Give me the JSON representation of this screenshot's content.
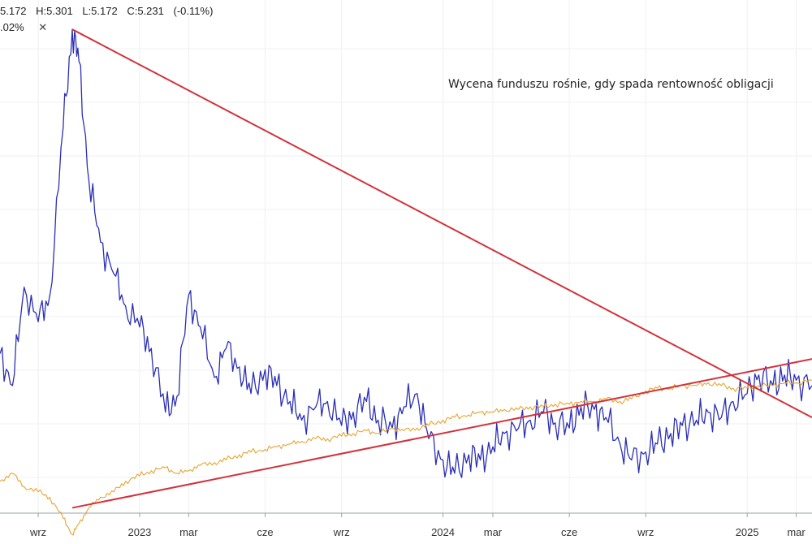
{
  "legend": {
    "open": "5.172",
    "high": "H:5.301",
    "low": "L:5.172",
    "close": "C:5.231",
    "change": "(-0.11%)",
    "row2_value": ".02%",
    "close_icon": "✕"
  },
  "annotation": "Wycena funduszu rośnie, gdy spada rentowność obligacji",
  "colors": {
    "series_blue": "#2b2fb5",
    "series_orange": "#e8a430",
    "trendline": "#d2323c",
    "grid": "#eef0f3"
  },
  "chart_data": {
    "type": "line",
    "x_tick_labels": [
      "wrz",
      "2023",
      "mar",
      "cze",
      "wrz",
      "2024",
      "mar",
      "cze",
      "wrz",
      "2025",
      "mar"
    ],
    "x_tick_dates": [
      "2022-09-01",
      "2023-01-01",
      "2023-03-01",
      "2023-06-01",
      "2023-09-01",
      "2024-01-01",
      "2024-03-01",
      "2024-06-01",
      "2024-09-01",
      "2025-01-01",
      "2025-03-01"
    ],
    "x_range": [
      "2022-07-17",
      "2025-03-20"
    ],
    "y_range": [
      4.6,
      6.5
    ],
    "grid": true,
    "series": [
      {
        "color": "blue",
        "x": [
          "2022-07-17",
          "2022-08-01",
          "2022-08-15",
          "2022-09-01",
          "2022-09-15",
          "2022-10-01",
          "2022-10-12",
          "2022-10-20",
          "2022-11-01",
          "2022-11-15",
          "2022-12-01",
          "2022-12-15",
          "2023-01-01",
          "2023-01-15",
          "2023-02-01",
          "2023-02-15",
          "2023-03-01",
          "2023-03-15",
          "2023-04-01",
          "2023-04-15",
          "2023-05-01",
          "2023-05-15",
          "2023-06-01",
          "2023-06-15",
          "2023-07-01",
          "2023-07-15",
          "2023-08-01",
          "2023-08-15",
          "2023-09-01",
          "2023-09-15",
          "2023-10-01",
          "2023-10-15",
          "2023-11-01",
          "2023-11-15",
          "2023-12-01",
          "2023-12-15",
          "2024-01-01",
          "2024-01-15",
          "2024-02-01",
          "2024-02-15",
          "2024-03-01",
          "2024-03-15",
          "2024-04-01",
          "2024-04-15",
          "2024-05-01",
          "2024-05-15",
          "2024-06-01",
          "2024-06-15",
          "2024-07-01",
          "2024-07-15",
          "2024-08-01",
          "2024-08-15",
          "2024-09-01",
          "2024-09-15",
          "2024-10-01",
          "2024-10-15",
          "2024-11-01",
          "2024-11-15",
          "2024-12-01",
          "2024-12-15",
          "2025-01-01",
          "2025-01-15",
          "2025-02-01",
          "2025-02-15",
          "2025-03-01",
          "2025-03-20"
        ],
        "values": [
          5.2,
          5.08,
          5.45,
          5.32,
          5.42,
          6.05,
          6.42,
          6.3,
          5.85,
          5.62,
          5.5,
          5.38,
          5.3,
          5.22,
          4.98,
          5.04,
          5.42,
          5.3,
          5.11,
          5.22,
          5.15,
          5.05,
          5.14,
          5.08,
          5.02,
          4.95,
          5.0,
          5.02,
          4.93,
          4.98,
          5.02,
          4.95,
          4.92,
          5.0,
          5.05,
          4.88,
          4.8,
          4.75,
          4.82,
          4.8,
          4.85,
          4.9,
          4.92,
          4.95,
          4.98,
          4.94,
          4.92,
          5.0,
          4.99,
          4.96,
          4.86,
          4.8,
          4.83,
          4.86,
          4.9,
          4.93,
          4.95,
          4.98,
          4.96,
          5.02,
          5.05,
          5.12,
          5.08,
          5.12,
          5.1,
          5.08
        ]
      },
      {
        "color": "orange",
        "x": [
          "2022-07-17",
          "2022-08-01",
          "2022-08-15",
          "2022-09-01",
          "2022-09-15",
          "2022-10-01",
          "2022-10-12",
          "2022-10-20",
          "2022-11-01",
          "2022-11-15",
          "2022-12-01",
          "2022-12-15",
          "2023-01-01",
          "2023-01-15",
          "2023-02-01",
          "2023-02-15",
          "2023-03-01",
          "2023-03-15",
          "2023-04-01",
          "2023-04-15",
          "2023-05-01",
          "2023-05-15",
          "2023-06-01",
          "2023-06-15",
          "2023-07-01",
          "2023-07-15",
          "2023-08-01",
          "2023-08-15",
          "2023-09-01",
          "2023-09-15",
          "2023-10-01",
          "2023-10-15",
          "2023-11-01",
          "2023-11-15",
          "2023-12-01",
          "2023-12-15",
          "2024-01-01",
          "2024-01-15",
          "2024-02-01",
          "2024-02-15",
          "2024-03-01",
          "2024-03-15",
          "2024-04-01",
          "2024-04-15",
          "2024-05-01",
          "2024-05-15",
          "2024-06-01",
          "2024-06-15",
          "2024-07-01",
          "2024-07-15",
          "2024-08-01",
          "2024-08-15",
          "2024-09-01",
          "2024-09-15",
          "2024-10-01",
          "2024-10-15",
          "2024-11-01",
          "2024-11-15",
          "2024-12-01",
          "2024-12-15",
          "2025-01-01",
          "2025-01-15",
          "2025-02-01",
          "2025-02-15",
          "2025-03-01",
          "2025-03-20"
        ],
        "values": [
          4.72,
          4.75,
          4.7,
          4.68,
          4.66,
          4.58,
          4.52,
          4.56,
          4.62,
          4.66,
          4.68,
          4.72,
          4.74,
          4.76,
          4.77,
          4.75,
          4.76,
          4.78,
          4.79,
          4.8,
          4.82,
          4.83,
          4.84,
          4.85,
          4.86,
          4.87,
          4.88,
          4.88,
          4.89,
          4.9,
          4.91,
          4.9,
          4.92,
          4.91,
          4.92,
          4.93,
          4.95,
          4.96,
          4.97,
          4.98,
          4.98,
          4.99,
          4.99,
          5.0,
          5.0,
          5.01,
          5.01,
          5.02,
          5.02,
          5.03,
          5.02,
          5.03,
          5.06,
          5.07,
          5.07,
          5.08,
          5.08,
          5.09,
          5.08,
          5.07,
          5.07,
          5.08,
          5.08,
          5.09,
          5.09,
          5.1
        ]
      }
    ],
    "trendlines": [
      {
        "from": [
          "2022-10-12",
          6.42
        ],
        "to": [
          "2025-03-20",
          4.96
        ]
      },
      {
        "from": [
          "2022-10-12",
          4.62
        ],
        "to": [
          "2025-03-20",
          5.18
        ]
      }
    ]
  }
}
